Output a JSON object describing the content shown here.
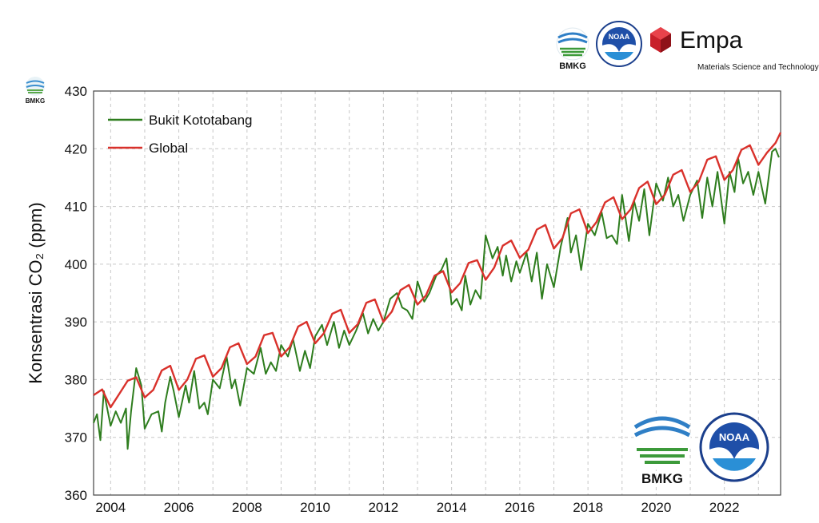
{
  "logos": {
    "bmkg_text": "BMKG",
    "noaa_text": "NOAA",
    "empa_name": "Empa",
    "empa_tagline": "Materials Science and Technology"
  },
  "colors": {
    "local": "#2e7d1e",
    "global": "#d9312b",
    "grid": "#c8c8c8"
  },
  "chart_data": {
    "type": "line",
    "ylabel": "Konsentrasi CO₂ (ppm)",
    "xlim": [
      2003.5,
      2023.65
    ],
    "ylim": [
      360,
      430
    ],
    "xticks": [
      2004,
      2006,
      2008,
      2010,
      2012,
      2014,
      2016,
      2018,
      2020,
      2022
    ],
    "yticks": [
      360,
      370,
      380,
      390,
      400,
      410,
      420,
      430
    ],
    "grid": true,
    "legend_position": "top-left",
    "series": [
      {
        "name": "Bukit Kototabang",
        "x": [
          2003.5,
          2003.6,
          2003.7,
          2003.8,
          2004.0,
          2004.15,
          2004.3,
          2004.45,
          2004.5,
          2004.6,
          2004.75,
          2004.9,
          2005.0,
          2005.2,
          2005.4,
          2005.5,
          2005.6,
          2005.75,
          2005.85,
          2006.0,
          2006.2,
          2006.3,
          2006.45,
          2006.6,
          2006.75,
          2006.85,
          2007.0,
          2007.2,
          2007.4,
          2007.55,
          2007.65,
          2007.8,
          2008.0,
          2008.2,
          2008.4,
          2008.55,
          2008.7,
          2008.85,
          2009.0,
          2009.2,
          2009.35,
          2009.55,
          2009.7,
          2009.85,
          2010.0,
          2010.2,
          2010.35,
          2010.55,
          2010.7,
          2010.85,
          2011.0,
          2011.2,
          2011.4,
          2011.55,
          2011.7,
          2011.85,
          2012.0,
          2012.2,
          2012.4,
          2012.55,
          2012.7,
          2012.85,
          2013.0,
          2013.2,
          2013.35,
          2013.55,
          2013.7,
          2013.85,
          2014.0,
          2014.15,
          2014.3,
          2014.4,
          2014.55,
          2014.7,
          2014.85,
          2015.0,
          2015.2,
          2015.35,
          2015.5,
          2015.6,
          2015.75,
          2015.9,
          2016.0,
          2016.2,
          2016.35,
          2016.5,
          2016.65,
          2016.8,
          2017.0,
          2017.2,
          2017.4,
          2017.5,
          2017.65,
          2017.8,
          2018.0,
          2018.2,
          2018.4,
          2018.55,
          2018.7,
          2018.85,
          2019.0,
          2019.2,
          2019.35,
          2019.5,
          2019.65,
          2019.8,
          2020.0,
          2020.2,
          2020.35,
          2020.5,
          2020.65,
          2020.8,
          2021.0,
          2021.2,
          2021.35,
          2021.5,
          2021.65,
          2021.8,
          2022.0,
          2022.15,
          2022.3,
          2022.4,
          2022.55,
          2022.7,
          2022.85,
          2023.0,
          2023.2,
          2023.4,
          2023.5,
          2023.6
        ],
        "values": [
          372.5,
          374.0,
          369.5,
          378.0,
          372.0,
          374.5,
          372.5,
          375.0,
          368.0,
          374.5,
          382.0,
          379.0,
          371.5,
          374.0,
          374.5,
          371.0,
          376.0,
          380.5,
          378.0,
          373.5,
          379.0,
          376.0,
          381.5,
          375.0,
          376.0,
          374.0,
          380.0,
          378.5,
          384.0,
          378.5,
          380.0,
          375.5,
          382.0,
          381.0,
          385.5,
          381.0,
          383.0,
          381.5,
          386.0,
          384.0,
          387.0,
          381.5,
          385.0,
          382.0,
          387.5,
          389.5,
          386.0,
          390.0,
          385.5,
          388.5,
          386.0,
          388.5,
          391.5,
          388.0,
          390.5,
          388.5,
          390.0,
          394.0,
          395.0,
          392.5,
          392.0,
          390.5,
          397.0,
          393.5,
          395.0,
          398.0,
          399.0,
          401.0,
          393.0,
          394.0,
          392.0,
          398.0,
          393.0,
          395.5,
          394.0,
          405.0,
          401.0,
          403.0,
          398.0,
          401.5,
          397.0,
          400.5,
          398.5,
          402.0,
          397.0,
          402.0,
          394.0,
          400.0,
          396.0,
          403.0,
          408.0,
          402.0,
          405.0,
          399.0,
          407.0,
          405.0,
          409.0,
          404.5,
          405.0,
          403.5,
          412.0,
          404.0,
          411.0,
          407.5,
          413.0,
          405.0,
          414.0,
          411.0,
          415.0,
          410.0,
          412.0,
          407.5,
          412.0,
          414.5,
          408.0,
          415.0,
          410.0,
          416.0,
          407.0,
          416.0,
          412.5,
          418.5,
          414.0,
          416.0,
          412.0,
          416.0,
          410.5,
          419.5,
          420.0,
          418.5
        ]
      },
      {
        "name": "Global",
        "x": [
          2003.5,
          2003.75,
          2004.0,
          2004.25,
          2004.5,
          2004.75,
          2005.0,
          2005.25,
          2005.5,
          2005.75,
          2006.0,
          2006.25,
          2006.5,
          2006.75,
          2007.0,
          2007.25,
          2007.5,
          2007.75,
          2008.0,
          2008.25,
          2008.5,
          2008.75,
          2009.0,
          2009.25,
          2009.5,
          2009.75,
          2010.0,
          2010.25,
          2010.5,
          2010.75,
          2011.0,
          2011.25,
          2011.5,
          2011.75,
          2012.0,
          2012.25,
          2012.5,
          2012.75,
          2013.0,
          2013.25,
          2013.5,
          2013.75,
          2014.0,
          2014.25,
          2014.5,
          2014.75,
          2015.0,
          2015.25,
          2015.5,
          2015.75,
          2016.0,
          2016.25,
          2016.5,
          2016.75,
          2017.0,
          2017.25,
          2017.5,
          2017.75,
          2018.0,
          2018.25,
          2018.5,
          2018.75,
          2019.0,
          2019.25,
          2019.5,
          2019.75,
          2020.0,
          2020.25,
          2020.5,
          2020.75,
          2021.0,
          2021.25,
          2021.5,
          2021.75,
          2022.0,
          2022.25,
          2022.5,
          2022.75,
          2023.0,
          2023.25,
          2023.5,
          2023.65
        ],
        "values": [
          377.3,
          378.3,
          375.2,
          377.5,
          379.8,
          380.4,
          376.9,
          378.2,
          381.6,
          382.4,
          378.2,
          380.0,
          383.6,
          384.2,
          380.5,
          382.0,
          385.6,
          386.3,
          382.7,
          384.0,
          387.7,
          388.1,
          384.0,
          385.6,
          389.2,
          390.0,
          386.3,
          388.0,
          391.4,
          392.1,
          388.1,
          389.6,
          393.3,
          393.9,
          390.0,
          391.8,
          395.5,
          396.4,
          393.0,
          394.6,
          398.0,
          398.8,
          395.1,
          396.7,
          400.2,
          400.7,
          397.3,
          399.4,
          403.2,
          404.1,
          401.1,
          402.5,
          406.0,
          406.8,
          402.7,
          404.5,
          408.8,
          409.5,
          405.4,
          407.3,
          410.7,
          411.6,
          407.8,
          409.5,
          413.2,
          414.3,
          410.4,
          412.0,
          415.5,
          416.3,
          412.5,
          414.3,
          418.1,
          418.7,
          414.6,
          416.3,
          419.8,
          420.6,
          417.2,
          419.3,
          421.0,
          422.8
        ]
      }
    ]
  }
}
